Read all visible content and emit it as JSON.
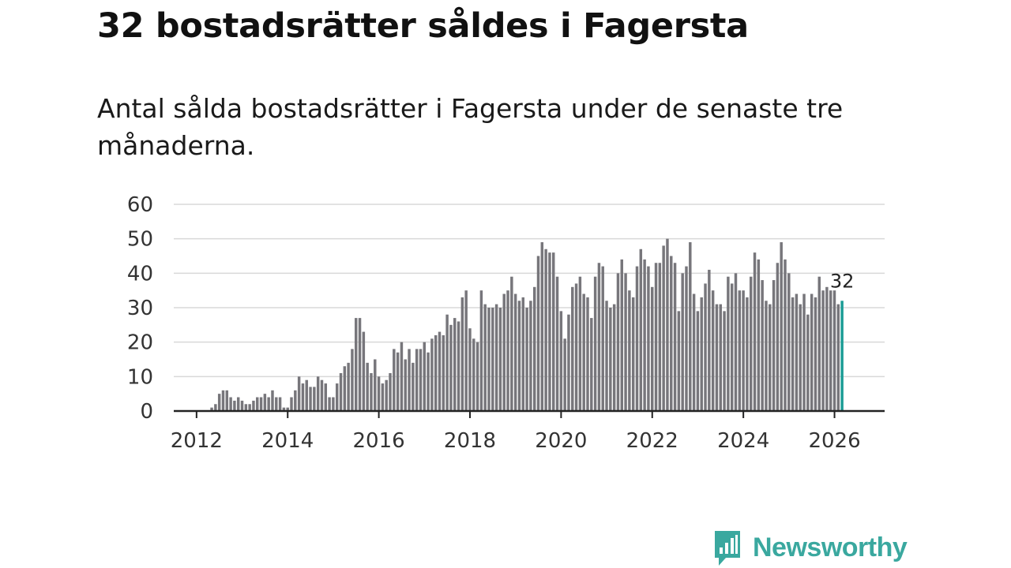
{
  "title": "32 bostadsrätter såldes i Fagersta",
  "subtitle": "Antal sålda bostadsrätter i Fagersta under de senaste tre månaderna.",
  "brand": {
    "name": "Newsworthy",
    "icon": "bar-chart-speech-bubble-icon",
    "color": "#3aa89f"
  },
  "colors": {
    "bars": "#77767b",
    "highlight": "#1a9c95",
    "grid": "#d9d9d9",
    "axis": "#222222"
  },
  "chart_data": {
    "type": "bar",
    "title": "32 bostadsrätter såldes i Fagersta",
    "xlabel": "",
    "ylabel": "",
    "ylim": [
      0,
      60
    ],
    "yticks": [
      0,
      10,
      20,
      30,
      40,
      50,
      60
    ],
    "xlim": [
      2011.5,
      2027.1
    ],
    "xticks": [
      "2012",
      "2014",
      "2016",
      "2018",
      "2020",
      "2022",
      "2024",
      "2026"
    ],
    "start": 2012.333,
    "step": 0.08333,
    "values": [
      1,
      2,
      5,
      6,
      6,
      4,
      3,
      4,
      3,
      2,
      2,
      3,
      4,
      4,
      5,
      4,
      6,
      4,
      4,
      1,
      1,
      4,
      6,
      10,
      8,
      9,
      7,
      7,
      10,
      9,
      8,
      4,
      4,
      8,
      11,
      13,
      14,
      18,
      27,
      27,
      23,
      14,
      11,
      15,
      10,
      8,
      9,
      11,
      18,
      17,
      20,
      15,
      18,
      14,
      18,
      18,
      20,
      17,
      21,
      22,
      23,
      22,
      28,
      25,
      27,
      26,
      33,
      35,
      24,
      21,
      20,
      35,
      31,
      30,
      30,
      31,
      30,
      34,
      35,
      39,
      34,
      32,
      33,
      30,
      32,
      36,
      45,
      49,
      47,
      46,
      46,
      39,
      29,
      21,
      28,
      36,
      37,
      39,
      34,
      33,
      27,
      39,
      43,
      42,
      32,
      30,
      31,
      40,
      44,
      40,
      35,
      33,
      42,
      47,
      44,
      42,
      36,
      43,
      43,
      48,
      50,
      45,
      43,
      29,
      40,
      42,
      49,
      34,
      29,
      33,
      37,
      41,
      35,
      31,
      31,
      29,
      39,
      37,
      40,
      35,
      35,
      33,
      39,
      46,
      44,
      38,
      32,
      31,
      38,
      43,
      49,
      44,
      40,
      33,
      34,
      31,
      34,
      28,
      34,
      33,
      39,
      35,
      36,
      35,
      35,
      31,
      32
    ],
    "annotations": [
      {
        "text": "32"
      }
    ]
  }
}
